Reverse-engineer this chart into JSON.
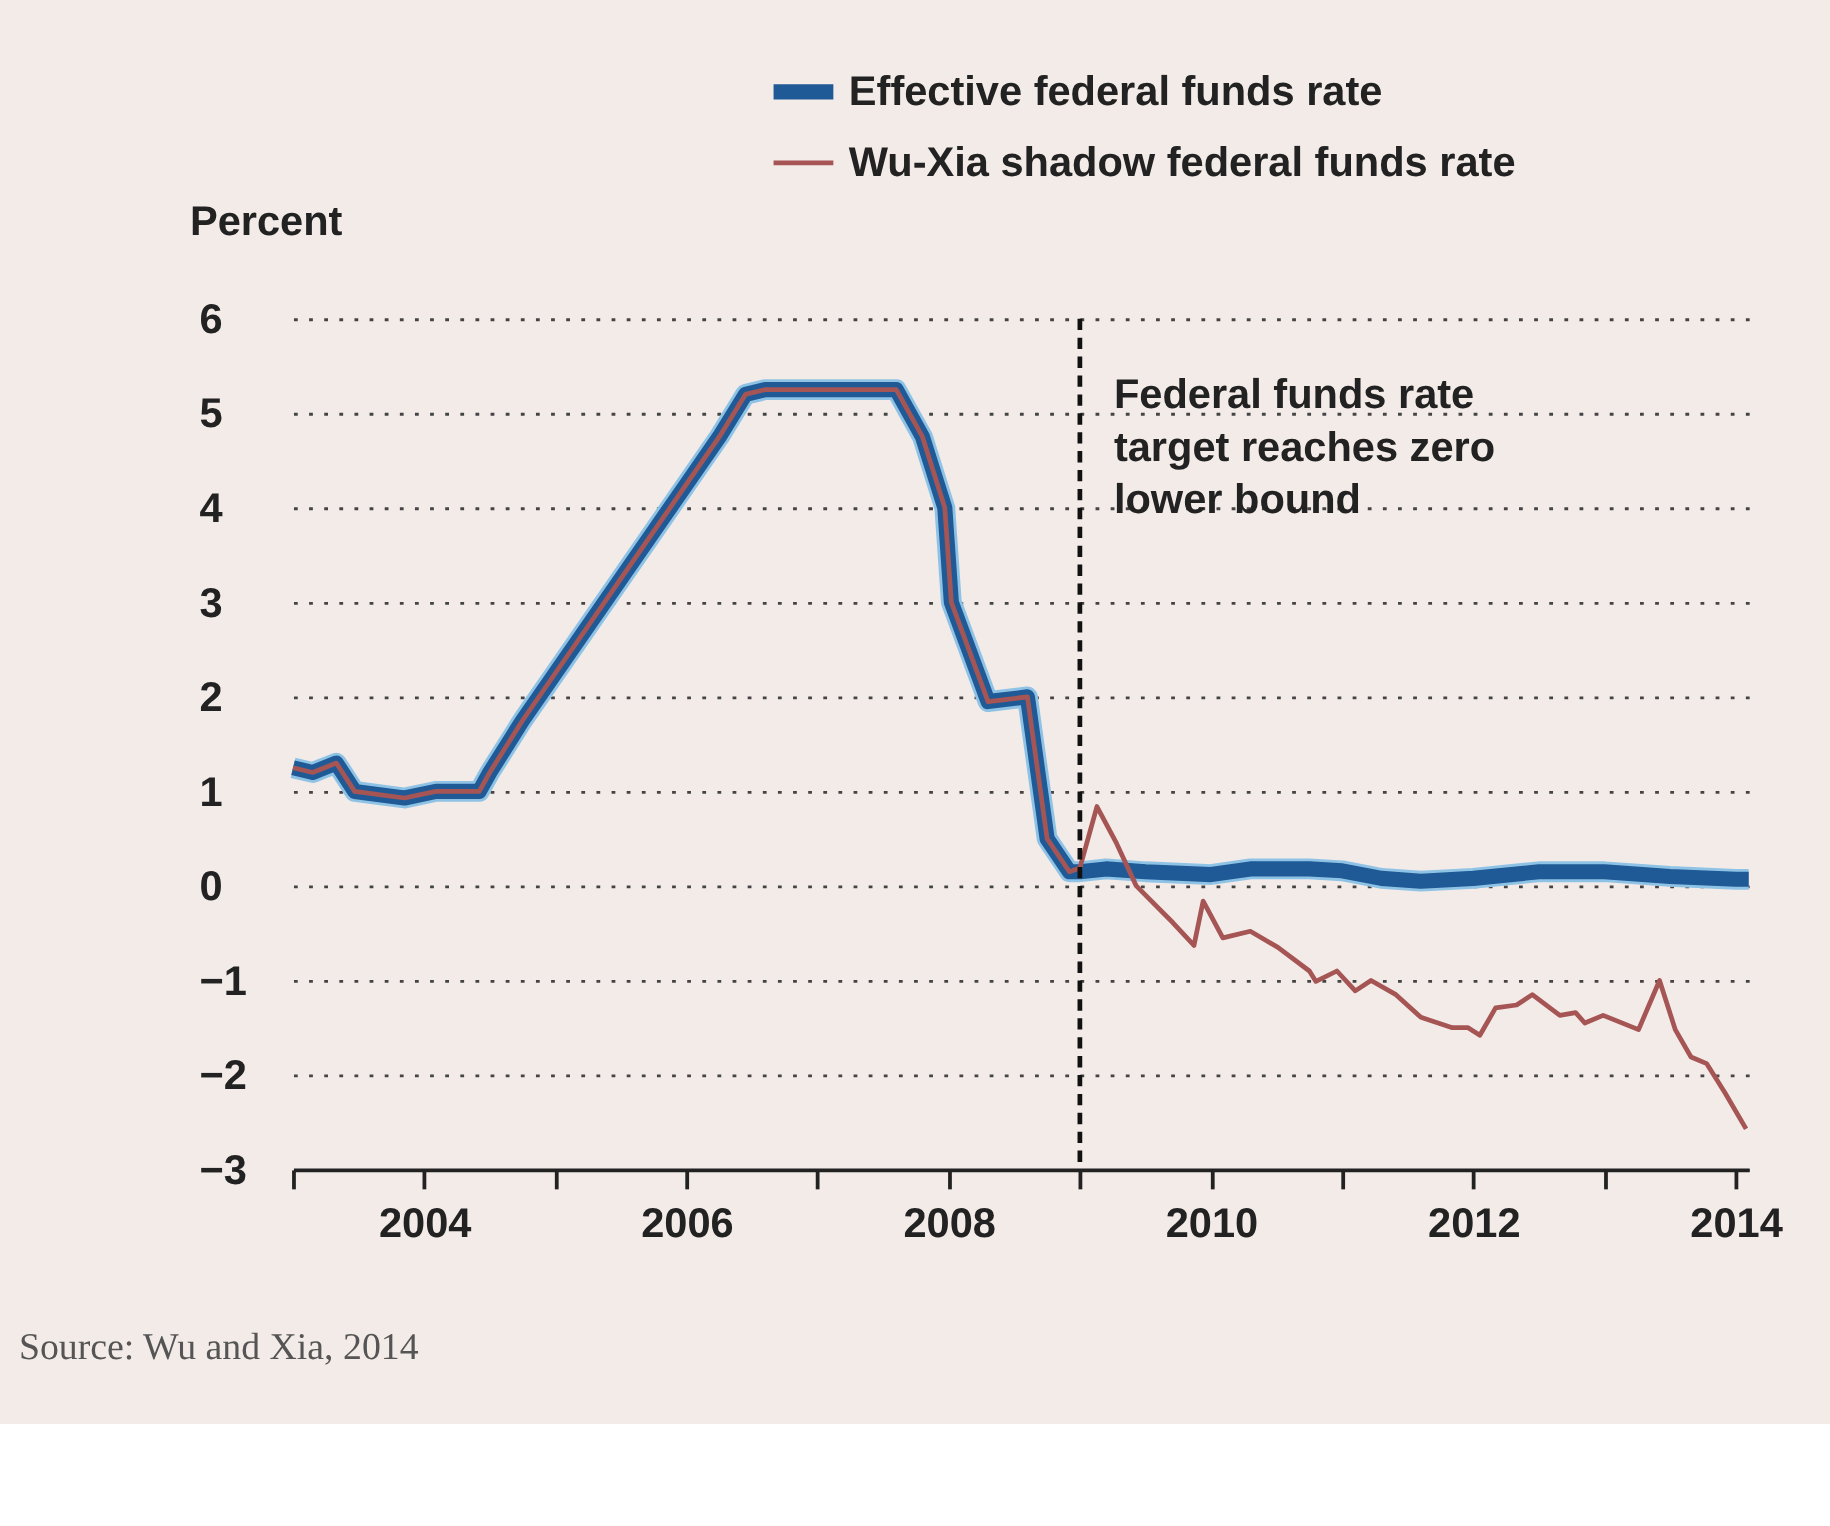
{
  "chart_data": {
    "type": "line",
    "ylabel": "Percent",
    "xlim": [
      2003,
      2014.1
    ],
    "ylim": [
      -3,
      6
    ],
    "yticks": [
      -3,
      -2,
      -1,
      0,
      1,
      2,
      3,
      4,
      5,
      6
    ],
    "xticks": [
      {
        "value": 2003,
        "label": null
      },
      {
        "value": 2004,
        "label": "2004"
      },
      {
        "value": 2005,
        "label": null
      },
      {
        "value": 2006,
        "label": "2006"
      },
      {
        "value": 2007,
        "label": null
      },
      {
        "value": 2008,
        "label": "2008"
      },
      {
        "value": 2009,
        "label": null
      },
      {
        "value": 2010,
        "label": "2010"
      },
      {
        "value": 2011,
        "label": null
      },
      {
        "value": 2012,
        "label": "2012"
      },
      {
        "value": 2013,
        "label": null
      },
      {
        "value": 2014,
        "label": "2014"
      }
    ],
    "grid": "y",
    "legend": "top right",
    "line_style": "solid",
    "marker": "none",
    "series": [
      {
        "name": "Effective federal funds rate",
        "color": "#1f5a96",
        "x": [
          2003.0,
          2003.15,
          2003.33,
          2003.47,
          2003.85,
          2004.09,
          2004.42,
          2004.5,
          2004.75,
          2005.0,
          2005.25,
          2005.5,
          2005.75,
          2006.0,
          2006.25,
          2006.45,
          2006.6,
          2007.0,
          2007.3,
          2007.6,
          2007.8,
          2007.97,
          2008.02,
          2008.3,
          2008.6,
          2008.75,
          2008.92,
          2009.0,
          2009.2,
          2009.5,
          2010.0,
          2010.3,
          2010.75,
          2011.0,
          2011.3,
          2011.6,
          2012.0,
          2012.5,
          2013.0,
          2013.5,
          2014.0,
          2014.1
        ],
        "values": [
          1.25,
          1.2,
          1.3,
          1.0,
          0.93,
          1.0,
          1.0,
          1.2,
          1.75,
          2.25,
          2.75,
          3.25,
          3.75,
          4.25,
          4.75,
          5.2,
          5.25,
          5.25,
          5.25,
          5.25,
          4.75,
          4.0,
          3.0,
          1.95,
          2.0,
          0.5,
          0.15,
          0.15,
          0.18,
          0.15,
          0.12,
          0.18,
          0.18,
          0.16,
          0.08,
          0.05,
          0.08,
          0.15,
          0.15,
          0.1,
          0.07,
          0.07
        ]
      },
      {
        "name": "Wu-Xia shadow federal funds rate",
        "color": "#a65555",
        "x": [
          2003.0,
          2003.15,
          2003.33,
          2003.47,
          2003.85,
          2004.09,
          2004.42,
          2004.5,
          2004.75,
          2005.0,
          2005.25,
          2005.5,
          2005.75,
          2006.0,
          2006.25,
          2006.45,
          2006.6,
          2007.0,
          2007.3,
          2007.6,
          2007.8,
          2007.97,
          2008.02,
          2008.3,
          2008.6,
          2008.75,
          2008.92,
          2009.0,
          2009.13,
          2009.28,
          2009.43,
          2009.71,
          2009.87,
          2009.94,
          2010.09,
          2010.3,
          2010.51,
          2010.75,
          2010.8,
          2010.96,
          2011.1,
          2011.22,
          2011.41,
          2011.6,
          2011.84,
          2011.96,
          2012.05,
          2012.17,
          2012.33,
          2012.45,
          2012.66,
          2012.78,
          2012.85,
          2012.99,
          2013.26,
          2013.42,
          2013.54,
          2013.66,
          2013.78,
          2013.92,
          2014.08
        ],
        "values": [
          1.25,
          1.2,
          1.3,
          1.0,
          0.93,
          1.0,
          1.0,
          1.2,
          1.75,
          2.25,
          2.75,
          3.25,
          3.75,
          4.25,
          4.75,
          5.2,
          5.25,
          5.25,
          5.25,
          5.25,
          4.75,
          4.0,
          3.0,
          1.95,
          2.0,
          0.5,
          0.15,
          0.19,
          0.84,
          0.45,
          0.0,
          -0.39,
          -0.63,
          -0.16,
          -0.55,
          -0.48,
          -0.65,
          -0.9,
          -1.01,
          -0.9,
          -1.11,
          -1.0,
          -1.15,
          -1.39,
          -1.5,
          -1.5,
          -1.58,
          -1.29,
          -1.26,
          -1.15,
          -1.37,
          -1.34,
          -1.45,
          -1.37,
          -1.52,
          -1.0,
          -1.52,
          -1.81,
          -1.88,
          -2.19,
          -2.57
        ]
      }
    ],
    "ref_lines": [
      {
        "axis": "x",
        "value": 2009,
        "label": "Federal funds rate\ntarget reaches zero\nlower bound",
        "color": "#111111",
        "line_style": "dashed"
      }
    ],
    "annotations": [
      "Source: Wu and Xia, 2014"
    ]
  }
}
